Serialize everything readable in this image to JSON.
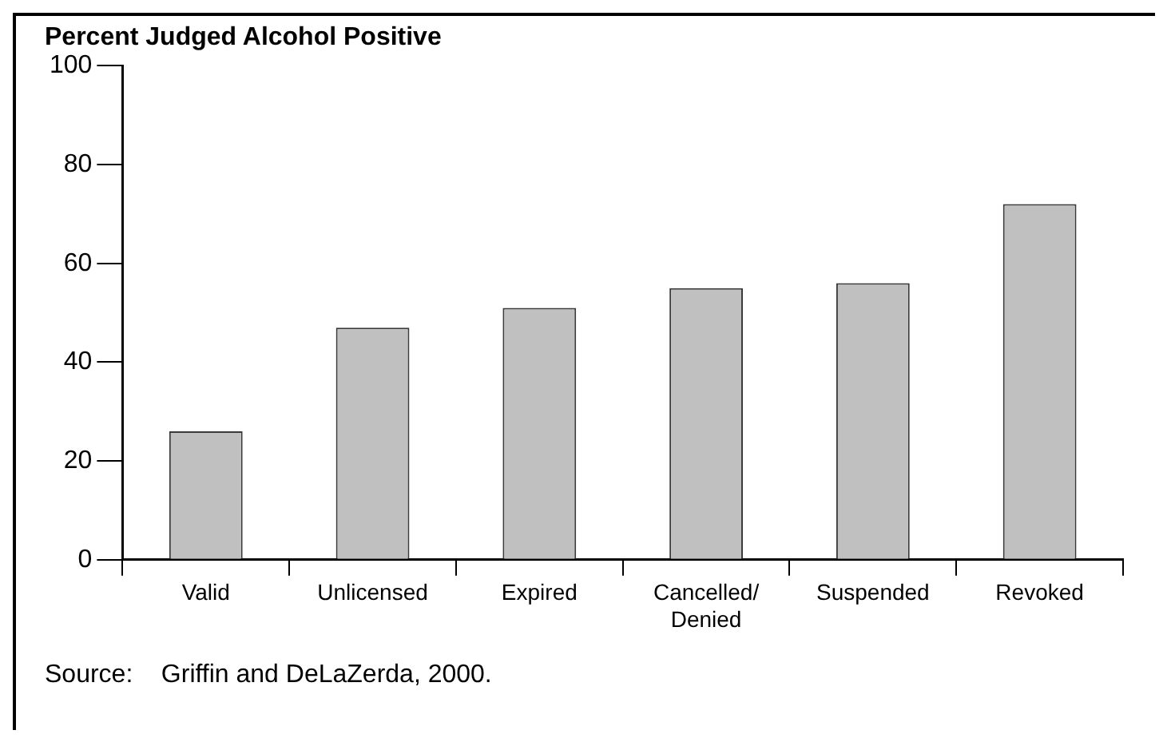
{
  "chart_data": {
    "type": "bar",
    "title": "Percent Judged Alcohol Positive",
    "categories": [
      "Valid",
      "Unlicensed",
      "Expired",
      "Cancelled/\nDenied",
      "Suspended",
      "Revoked"
    ],
    "values": [
      26,
      47,
      51,
      55,
      56,
      72
    ],
    "color": "#c0c0c0",
    "ylim": [
      0,
      100
    ],
    "yticks": [
      0,
      20,
      40,
      60,
      80,
      100
    ],
    "grid": false,
    "legend": false,
    "annotations": [
      "Source:    Griffin and DeLaZerda, 2000."
    ]
  }
}
